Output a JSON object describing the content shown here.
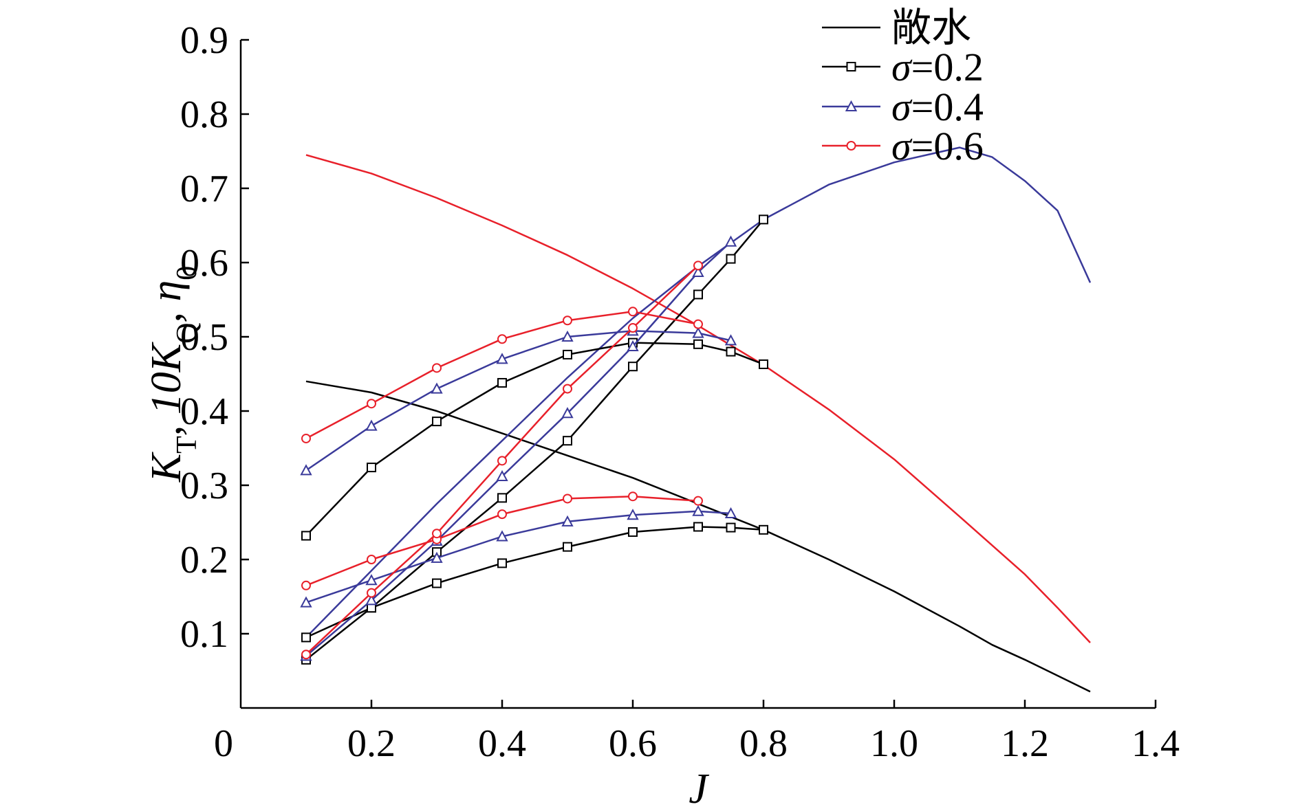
{
  "chart_data": {
    "type": "line",
    "xlabel": "J",
    "ylabel": "K_T, 10K_Q, η_0",
    "xlim": [
      0,
      1.4
    ],
    "ylim": [
      0,
      0.9
    ],
    "x_ticks": [
      "0",
      "0.2",
      "0.4",
      "0.6",
      "0.8",
      "1.0",
      "1.2",
      "1.4"
    ],
    "y_ticks": [
      "0.1",
      "0.2",
      "0.3",
      "0.4",
      "0.5",
      "0.6",
      "0.7",
      "0.8",
      "0.9"
    ],
    "legend_position": "top-right",
    "legend": [
      {
        "label": "敞水",
        "color": "#000000",
        "marker": "none"
      },
      {
        "label": "σ=0.2",
        "color": "#000000",
        "marker": "square"
      },
      {
        "label": "σ=0.4",
        "color": "#3a3a9a",
        "marker": "triangle"
      },
      {
        "label": "σ=0.6",
        "color": "#e8202a",
        "marker": "circle"
      }
    ],
    "series": [
      {
        "group": "敞水",
        "quantity": "K_T",
        "color": "#000000",
        "marker": "none",
        "x": [
          0.1,
          0.2,
          0.3,
          0.4,
          0.5,
          0.6,
          0.7,
          0.8,
          0.9,
          1.0,
          1.1,
          1.15,
          1.2,
          1.3
        ],
        "y": [
          0.44,
          0.425,
          0.4,
          0.37,
          0.34,
          0.31,
          0.275,
          0.24,
          0.2,
          0.157,
          0.11,
          0.085,
          0.065,
          0.022
        ]
      },
      {
        "group": "敞水",
        "quantity": "10K_Q",
        "color": "#e8202a",
        "marker": "none",
        "x": [
          0.1,
          0.2,
          0.3,
          0.4,
          0.5,
          0.6,
          0.7,
          0.8,
          0.9,
          1.0,
          1.1,
          1.2,
          1.25,
          1.3
        ],
        "y": [
          0.745,
          0.72,
          0.687,
          0.65,
          0.61,
          0.565,
          0.515,
          0.462,
          0.402,
          0.335,
          0.258,
          0.18,
          0.135,
          0.088
        ]
      },
      {
        "group": "敞水",
        "quantity": "η_0",
        "color": "#3a3a9a",
        "marker": "none",
        "x": [
          0.1,
          0.2,
          0.3,
          0.4,
          0.5,
          0.6,
          0.7,
          0.8,
          0.9,
          1.0,
          1.05,
          1.1,
          1.15,
          1.2,
          1.25,
          1.3
        ],
        "y": [
          0.095,
          0.185,
          0.275,
          0.36,
          0.445,
          0.525,
          0.595,
          0.658,
          0.705,
          0.735,
          0.745,
          0.755,
          0.742,
          0.71,
          0.67,
          0.573
        ]
      },
      {
        "group": "σ=0.2",
        "quantity": "K_T",
        "color": "#000000",
        "marker": "square",
        "x": [
          0.1,
          0.2,
          0.3,
          0.4,
          0.5,
          0.6,
          0.7,
          0.75,
          0.8
        ],
        "y": [
          0.095,
          0.135,
          0.168,
          0.195,
          0.217,
          0.237,
          0.244,
          0.243,
          0.24
        ]
      },
      {
        "group": "σ=0.2",
        "quantity": "10K_Q",
        "color": "#000000",
        "marker": "square",
        "x": [
          0.1,
          0.2,
          0.3,
          0.4,
          0.5,
          0.6,
          0.7,
          0.75,
          0.8
        ],
        "y": [
          0.232,
          0.324,
          0.386,
          0.438,
          0.476,
          0.492,
          0.49,
          0.48,
          0.463
        ]
      },
      {
        "group": "σ=0.2",
        "quantity": "η_0",
        "color": "#000000",
        "marker": "square",
        "x": [
          0.1,
          0.2,
          0.3,
          0.4,
          0.5,
          0.6,
          0.7,
          0.75,
          0.8
        ],
        "y": [
          0.065,
          0.135,
          0.21,
          0.283,
          0.36,
          0.46,
          0.557,
          0.605,
          0.658
        ]
      },
      {
        "group": "σ=0.4",
        "quantity": "K_T",
        "color": "#3a3a9a",
        "marker": "triangle",
        "x": [
          0.1,
          0.2,
          0.3,
          0.4,
          0.5,
          0.6,
          0.7,
          0.75
        ],
        "y": [
          0.142,
          0.172,
          0.202,
          0.231,
          0.251,
          0.26,
          0.265,
          0.262
        ]
      },
      {
        "group": "σ=0.4",
        "quantity": "10K_Q",
        "color": "#3a3a9a",
        "marker": "triangle",
        "x": [
          0.1,
          0.2,
          0.3,
          0.4,
          0.5,
          0.6,
          0.7,
          0.75
        ],
        "y": [
          0.32,
          0.38,
          0.43,
          0.47,
          0.5,
          0.508,
          0.505,
          0.495
        ]
      },
      {
        "group": "σ=0.4",
        "quantity": "η_0",
        "color": "#3a3a9a",
        "marker": "triangle",
        "x": [
          0.1,
          0.2,
          0.3,
          0.4,
          0.5,
          0.6,
          0.7,
          0.75
        ],
        "y": [
          0.07,
          0.145,
          0.225,
          0.312,
          0.397,
          0.487,
          0.587,
          0.628
        ]
      },
      {
        "group": "σ=0.6",
        "quantity": "K_T",
        "color": "#e8202a",
        "marker": "circle",
        "x": [
          0.1,
          0.2,
          0.3,
          0.4,
          0.5,
          0.6,
          0.7
        ],
        "y": [
          0.165,
          0.2,
          0.227,
          0.261,
          0.282,
          0.285,
          0.279
        ]
      },
      {
        "group": "σ=0.6",
        "quantity": "10K_Q",
        "color": "#e8202a",
        "marker": "circle",
        "x": [
          0.1,
          0.2,
          0.3,
          0.4,
          0.5,
          0.6,
          0.7
        ],
        "y": [
          0.363,
          0.41,
          0.458,
          0.497,
          0.522,
          0.534,
          0.517
        ]
      },
      {
        "group": "σ=0.6",
        "quantity": "η_0",
        "color": "#e8202a",
        "marker": "circle",
        "x": [
          0.1,
          0.2,
          0.3,
          0.4,
          0.5,
          0.6,
          0.7
        ],
        "y": [
          0.072,
          0.155,
          0.235,
          0.333,
          0.43,
          0.512,
          0.596
        ]
      }
    ]
  }
}
